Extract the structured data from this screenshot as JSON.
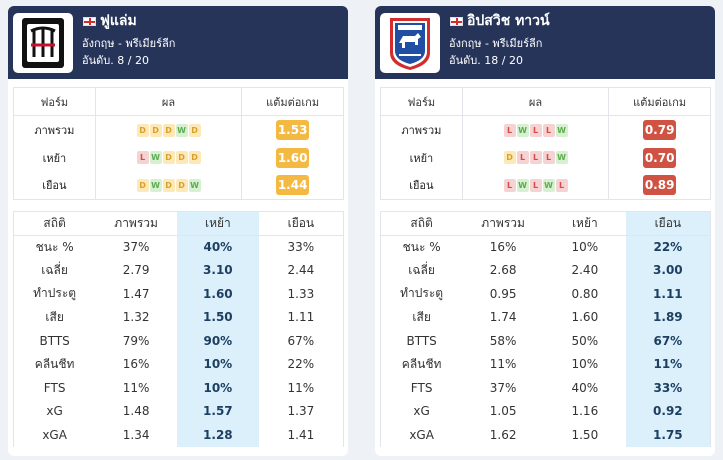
{
  "labels": {
    "form": "ฟอร์ม",
    "result": "ผล",
    "ppg": "แต้มต่อเกม",
    "stats": "สถิติ",
    "overall": "ภาพรวม",
    "home": "เหย้า",
    "away": "เยือน"
  },
  "colors": {
    "header_bg": "#26345a",
    "highlight_col": "#dcf0fb",
    "ppg_good": "#f4b942",
    "ppg_bad": "#cf5242",
    "form_draw": "#fde9b8",
    "form_win": "#d7f0d2",
    "form_loss": "#f6d3d3"
  },
  "teams": [
    {
      "name": "ฟูแล่ม",
      "country_flag": "england-flag",
      "league": "อังกฤษ - พรีเมียร์ลีก",
      "rank": "อันดับ. 8 / 20",
      "logo_icon": "fulham-crest-icon",
      "highlight_col": 2,
      "form": [
        {
          "label": "ภาพรวม",
          "results": [
            "D",
            "D",
            "D",
            "W",
            "D"
          ],
          "ppg": "1.53",
          "ppg_color": "#f4b942"
        },
        {
          "label": "เหย้า",
          "results": [
            "L",
            "W",
            "D",
            "D",
            "D"
          ],
          "ppg": "1.60",
          "ppg_color": "#f4b942"
        },
        {
          "label": "เยือน",
          "results": [
            "D",
            "W",
            "D",
            "D",
            "W"
          ],
          "ppg": "1.44",
          "ppg_color": "#f4b942"
        }
      ],
      "stats": [
        {
          "label": "ชนะ %",
          "values": [
            "37%",
            "40%",
            "33%"
          ]
        },
        {
          "label": "เฉลี่ย",
          "values": [
            "2.79",
            "3.10",
            "2.44"
          ]
        },
        {
          "label": "ทำประตู",
          "values": [
            "1.47",
            "1.60",
            "1.33"
          ]
        },
        {
          "label": "เสีย",
          "values": [
            "1.32",
            "1.50",
            "1.11"
          ]
        },
        {
          "label": "BTTS",
          "values": [
            "79%",
            "90%",
            "67%"
          ]
        },
        {
          "label": "คลีนชีท",
          "values": [
            "16%",
            "10%",
            "22%"
          ]
        },
        {
          "label": "FTS",
          "values": [
            "11%",
            "10%",
            "11%"
          ]
        },
        {
          "label": "xG",
          "values": [
            "1.48",
            "1.57",
            "1.37"
          ]
        },
        {
          "label": "xGA",
          "values": [
            "1.34",
            "1.28",
            "1.41"
          ]
        }
      ]
    },
    {
      "name": "อิปสวิช ทาวน์",
      "country_flag": "england-flag",
      "league": "อังกฤษ - พรีเมียร์ลีก",
      "rank": "อันดับ. 18 / 20",
      "logo_icon": "ipswich-crest-icon",
      "highlight_col": 3,
      "form": [
        {
          "label": "ภาพรวม",
          "results": [
            "L",
            "W",
            "L",
            "L",
            "W"
          ],
          "ppg": "0.79",
          "ppg_color": "#cf5242"
        },
        {
          "label": "เหย้า",
          "results": [
            "D",
            "L",
            "L",
            "L",
            "W"
          ],
          "ppg": "0.70",
          "ppg_color": "#cf5242"
        },
        {
          "label": "เยือน",
          "results": [
            "L",
            "W",
            "L",
            "W",
            "L"
          ],
          "ppg": "0.89",
          "ppg_color": "#cf5242"
        }
      ],
      "stats": [
        {
          "label": "ชนะ %",
          "values": [
            "16%",
            "10%",
            "22%"
          ]
        },
        {
          "label": "เฉลี่ย",
          "values": [
            "2.68",
            "2.40",
            "3.00"
          ]
        },
        {
          "label": "ทำประตู",
          "values": [
            "0.95",
            "0.80",
            "1.11"
          ]
        },
        {
          "label": "เสีย",
          "values": [
            "1.74",
            "1.60",
            "1.89"
          ]
        },
        {
          "label": "BTTS",
          "values": [
            "58%",
            "50%",
            "67%"
          ]
        },
        {
          "label": "คลีนชีท",
          "values": [
            "11%",
            "10%",
            "11%"
          ]
        },
        {
          "label": "FTS",
          "values": [
            "37%",
            "40%",
            "33%"
          ]
        },
        {
          "label": "xG",
          "values": [
            "1.05",
            "1.16",
            "0.92"
          ]
        },
        {
          "label": "xGA",
          "values": [
            "1.62",
            "1.50",
            "1.75"
          ]
        }
      ]
    }
  ]
}
